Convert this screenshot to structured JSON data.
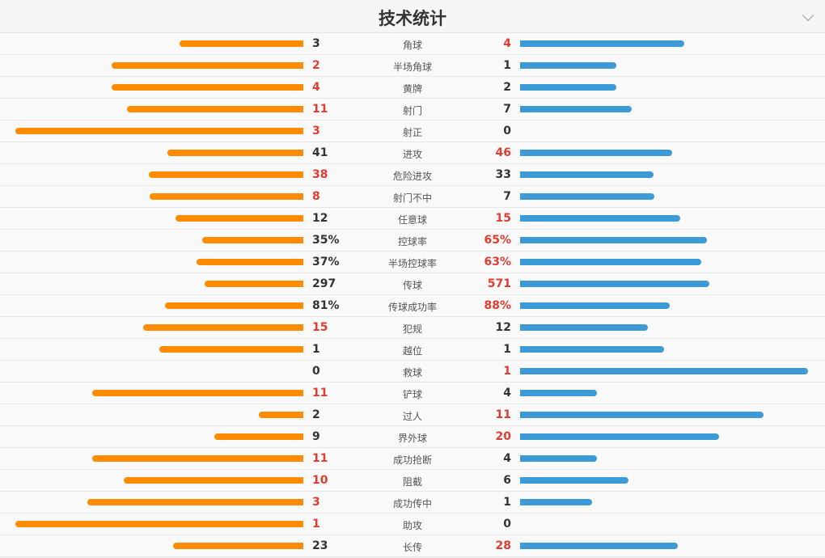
{
  "title": "技术统计",
  "colors": {
    "home": "#ff8c00",
    "away": "#3c9ad6",
    "highlight": "#e03c31"
  },
  "stats": [
    {
      "label": "角球",
      "home": "3",
      "away": "4",
      "h": 3,
      "a": 4
    },
    {
      "label": "半场角球",
      "home": "2",
      "away": "1",
      "h": 2,
      "a": 1
    },
    {
      "label": "黄牌",
      "home": "4",
      "away": "2",
      "h": 4,
      "a": 2
    },
    {
      "label": "射门",
      "home": "11",
      "away": "7",
      "h": 11,
      "a": 7
    },
    {
      "label": "射正",
      "home": "3",
      "away": "0",
      "h": 3,
      "a": 0
    },
    {
      "label": "进攻",
      "home": "41",
      "away": "46",
      "h": 41,
      "a": 46
    },
    {
      "label": "危险进攻",
      "home": "38",
      "away": "33",
      "h": 38,
      "a": 33
    },
    {
      "label": "射门不中",
      "home": "8",
      "away": "7",
      "h": 8,
      "a": 7
    },
    {
      "label": "任意球",
      "home": "12",
      "away": "15",
      "h": 12,
      "a": 15
    },
    {
      "label": "控球率",
      "home": "35%",
      "away": "65%",
      "h": 35,
      "a": 65
    },
    {
      "label": "半场控球率",
      "home": "37%",
      "away": "63%",
      "h": 37,
      "a": 63
    },
    {
      "label": "传球",
      "home": "297",
      "away": "571",
      "h": 297,
      "a": 571
    },
    {
      "label": "传球成功率",
      "home": "81%",
      "away": "88%",
      "h": 81,
      "a": 88
    },
    {
      "label": "犯规",
      "home": "15",
      "away": "12",
      "h": 15,
      "a": 12
    },
    {
      "label": "越位",
      "home": "1",
      "away": "1",
      "h": 1,
      "a": 1
    },
    {
      "label": "救球",
      "home": "0",
      "away": "1",
      "h": 0,
      "a": 1
    },
    {
      "label": "铲球",
      "home": "11",
      "away": "4",
      "h": 11,
      "a": 4
    },
    {
      "label": "过人",
      "home": "2",
      "away": "11",
      "h": 2,
      "a": 11
    },
    {
      "label": "界外球",
      "home": "9",
      "away": "20",
      "h": 9,
      "a": 20
    },
    {
      "label": "成功抢断",
      "home": "11",
      "away": "4",
      "h": 11,
      "a": 4
    },
    {
      "label": "阻截",
      "home": "10",
      "away": "6",
      "h": 10,
      "a": 6
    },
    {
      "label": "成功传中",
      "home": "3",
      "away": "1",
      "h": 3,
      "a": 1
    },
    {
      "label": "助攻",
      "home": "1",
      "away": "0",
      "h": 1,
      "a": 0
    },
    {
      "label": "长传",
      "home": "23",
      "away": "28",
      "h": 23,
      "a": 28
    }
  ]
}
